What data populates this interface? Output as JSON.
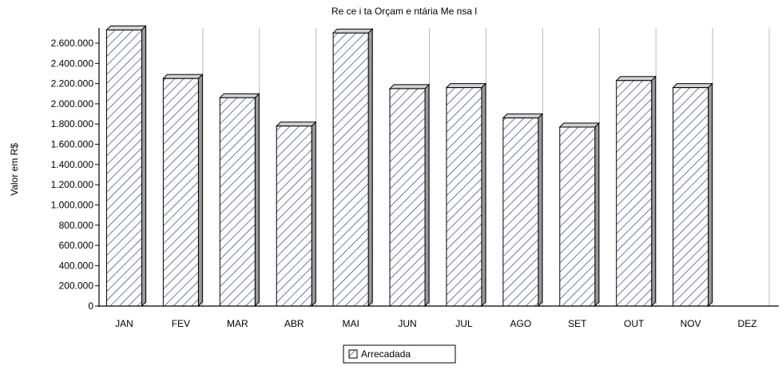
{
  "colors": {
    "background": "#ffffff",
    "bar_front": "#ffffff",
    "bar_hatch": "#2b2b8c",
    "bar_outline": "#000000",
    "bar_side": "#9a9a9a",
    "bar_top": "#d2d2d2",
    "gridline": "#b8b8b8",
    "axis": "#000000"
  },
  "chart_data": {
    "type": "bar",
    "title": "Re ce i ta Orçam e ntária  Me nsa l",
    "ylabel": "Valor em R$",
    "xlabel": "",
    "categories": [
      "JAN",
      "FEV",
      "MAR",
      "ABR",
      "MAI",
      "JUN",
      "JUL",
      "AGO",
      "SET",
      "OUT",
      "NOV",
      "DEZ"
    ],
    "series": [
      {
        "name": "Arrecadada",
        "pattern": "diagonal-hatch",
        "values": [
          2730000,
          2250000,
          2060000,
          1780000,
          2700000,
          2150000,
          2160000,
          1860000,
          1770000,
          2230000,
          2160000,
          null
        ]
      }
    ],
    "ylim": [
      0,
      2750000
    ],
    "yticks": [
      0,
      200000,
      400000,
      600000,
      800000,
      1000000,
      1200000,
      1400000,
      1600000,
      1800000,
      2000000,
      2200000,
      2400000,
      2600000
    ],
    "ytick_labels": [
      "0",
      "200.000",
      "400.000",
      "600.000",
      "800.000",
      "1.000.000",
      "1.200.000",
      "1.400.000",
      "1.600.000",
      "1.800.000",
      "2.000.000",
      "2.200.000",
      "2.400.000",
      "2.600.000"
    ],
    "grid": "vertical",
    "legend": {
      "position": "bottom-center",
      "label": "Arrecadada"
    }
  }
}
